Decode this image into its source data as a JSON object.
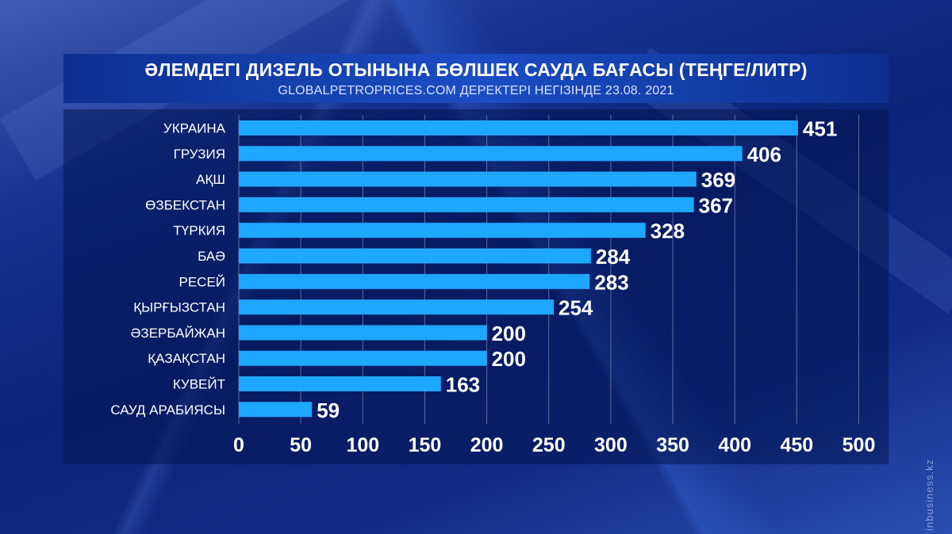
{
  "header": {
    "title": "ӘЛЕМДЕГІ ДИЗЕЛЬ ОТЫНЫНА БӨЛШЕК САУДА БАҒАСЫ (ТЕҢГЕ/ЛИТР)",
    "subtitle": "GLOBALPETROPRICES.COM ДЕРЕКТЕРІ НЕГІЗІНДЕ 23.08. 2021"
  },
  "watermark": "inbusiness.kz",
  "colors": {
    "bar": "#1ea7ff",
    "header": "#1b4dc4",
    "background": "#0b2378"
  },
  "chart_data": {
    "type": "bar",
    "orientation": "horizontal",
    "title": "ӘЛЕМДЕГІ ДИЗЕЛЬ ОТЫНЫНА БӨЛШЕК САУДА БАҒАСЫ (ТЕҢГЕ/ЛИТР)",
    "subtitle": "GLOBALPETROPRICES.COM ДЕРЕКТЕРІ НЕГІЗІНДЕ 23.08. 2021",
    "categories": [
      "УКРАИНА",
      "ГРУЗИЯ",
      "АҚШ",
      "ӨЗБЕКСТАН",
      "ТҮРКИЯ",
      "БАӘ",
      "РЕСЕЙ",
      "ҚЫРҒЫЗСТАН",
      "ӘЗЕРБАЙЖАН",
      "ҚАЗАҚСТАН",
      "КУВЕЙТ",
      "САУД АРАБИЯСЫ"
    ],
    "values": [
      451,
      406,
      369,
      367,
      328,
      284,
      283,
      254,
      200,
      200,
      163,
      59
    ],
    "xlim": [
      0,
      500
    ],
    "xticks": [
      "0",
      "50",
      "100",
      "150",
      "200",
      "250",
      "300",
      "350",
      "400",
      "450",
      "500"
    ],
    "tick_values": [
      0,
      50,
      100,
      150,
      200,
      250,
      300,
      350,
      400,
      450,
      500
    ],
    "grid": true,
    "legend": "none"
  }
}
